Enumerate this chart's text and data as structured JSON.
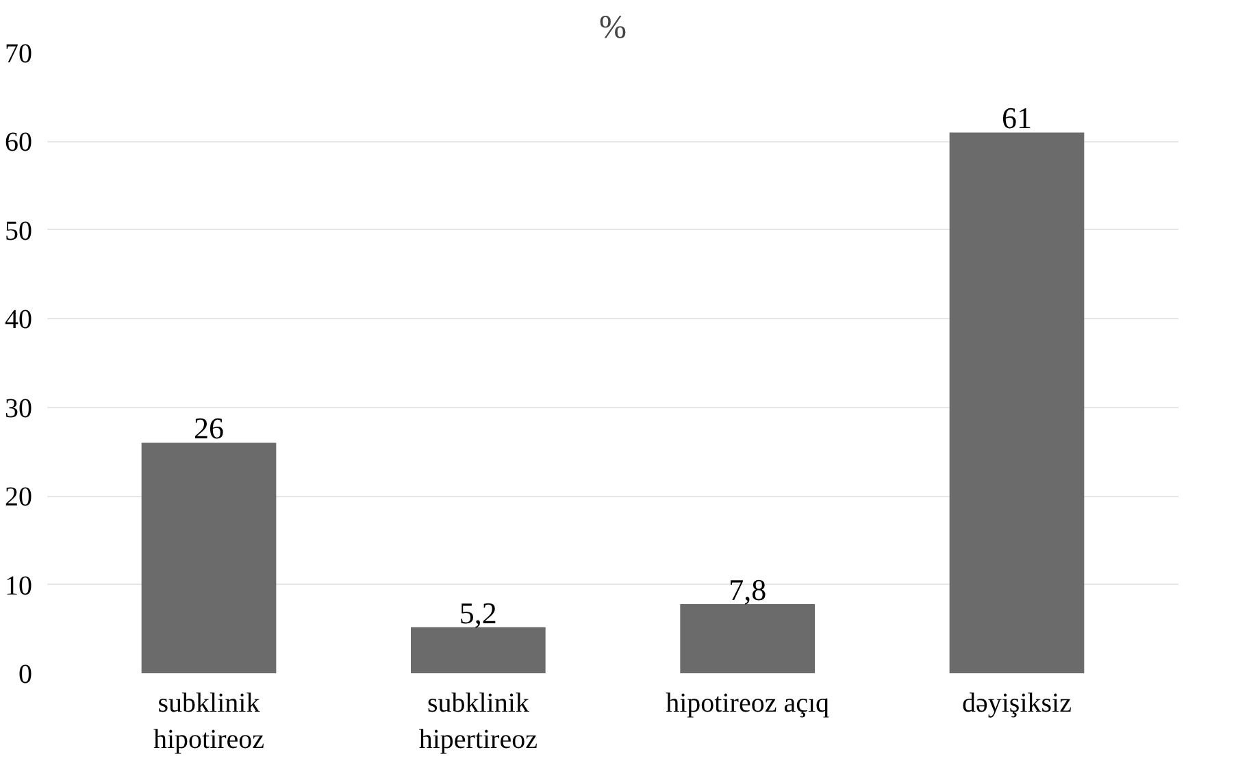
{
  "chart_data": {
    "type": "bar",
    "title": "%",
    "categories": [
      "subklinik\nhipotireoz",
      "subklinik\nhipertireoz",
      "hipotireoz açıq",
      "dəyişiksiz"
    ],
    "values": [
      26,
      5.2,
      7.8,
      61
    ],
    "value_labels": [
      "26",
      "5,2",
      "7,8",
      "61"
    ],
    "color": "#6b6b6b",
    "ylim": [
      0,
      70
    ],
    "yticks": [
      0,
      10,
      20,
      30,
      40,
      50,
      60,
      70
    ],
    "grid": "y"
  }
}
